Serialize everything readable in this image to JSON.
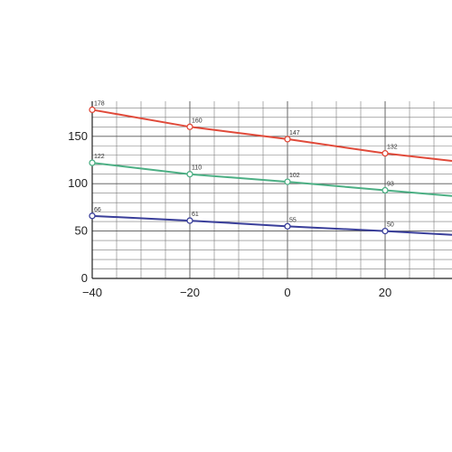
{
  "chart_data": {
    "type": "line",
    "title": "",
    "xlabel": "",
    "ylabel": "",
    "xlim": [
      -40,
      33.7
    ],
    "ylim": [
      0,
      187
    ],
    "x_ticks": [
      -40,
      -20,
      0,
      20
    ],
    "x_tick_labels": [
      "−40",
      "−20",
      "0",
      "20"
    ],
    "y_ticks": [
      0,
      50,
      100,
      150
    ],
    "y_tick_labels": [
      "0",
      "50",
      "100",
      "150"
    ],
    "grid": true,
    "legend": "none",
    "series": [
      {
        "color": "#e04a3a",
        "x": [
          -40,
          -20,
          0,
          20,
          33.7
        ],
        "y": [
          178,
          160,
          147,
          132,
          124
        ],
        "labels": [
          "178",
          "160",
          "147",
          "132",
          ""
        ]
      },
      {
        "color": "#4caf84",
        "x": [
          -40,
          -20,
          0,
          20,
          33.7
        ],
        "y": [
          122,
          110,
          102,
          93,
          87
        ],
        "labels": [
          "122",
          "110",
          "102",
          "93",
          ""
        ]
      },
      {
        "color": "#3a3f9a",
        "x": [
          -40,
          -20,
          0,
          20,
          33.7
        ],
        "y": [
          66,
          61,
          55,
          50,
          46
        ],
        "labels": [
          "66",
          "61",
          "55",
          "50",
          ""
        ]
      }
    ]
  }
}
